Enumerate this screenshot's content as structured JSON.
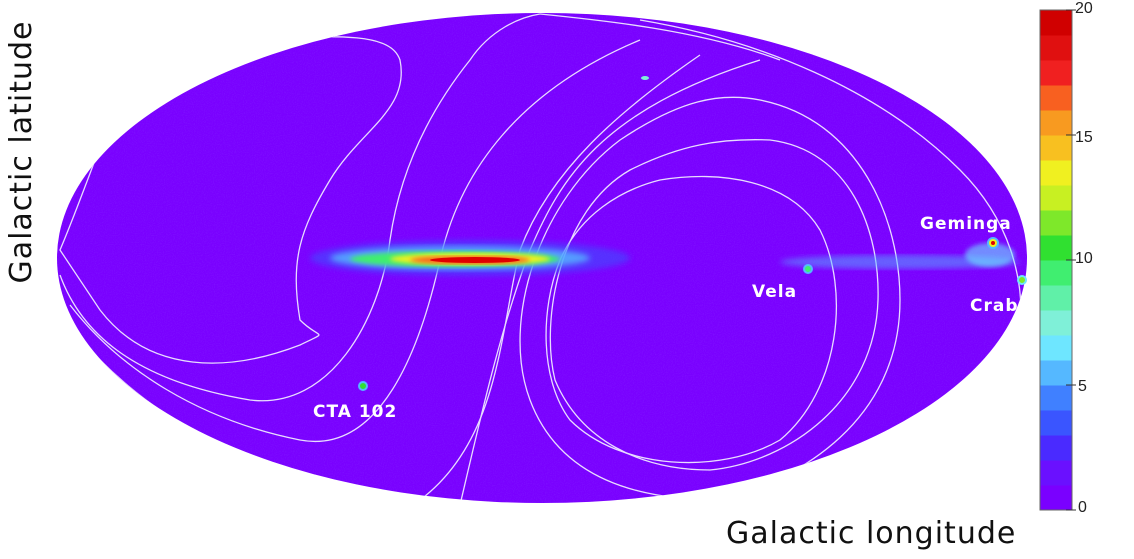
{
  "axes": {
    "xlabel": "Galactic longitude",
    "ylabel": "Galactic latitude"
  },
  "sources": [
    {
      "name": "Geminga"
    },
    {
      "name": "Vela"
    },
    {
      "name": "Crab"
    },
    {
      "name": "CTA 102"
    }
  ],
  "colorbar": {
    "min": 0,
    "max": 20,
    "ticks": [
      "20",
      "15",
      "10",
      "5",
      "0"
    ],
    "colors": [
      "#7a00ff",
      "#6a10ff",
      "#4a2aff",
      "#3a55ff",
      "#4080ff",
      "#55b8ff",
      "#6ee6ff",
      "#7ff0d8",
      "#60f0a8",
      "#40ee70",
      "#30e030",
      "#7ee82a",
      "#c8f022",
      "#f0f020",
      "#f8c020",
      "#f89a20",
      "#f86020",
      "#f02020",
      "#e01010",
      "#d00000"
    ]
  },
  "colors": {
    "background": "#7a00ff",
    "contour": "#e8dcff",
    "hot": "#e00000"
  }
}
